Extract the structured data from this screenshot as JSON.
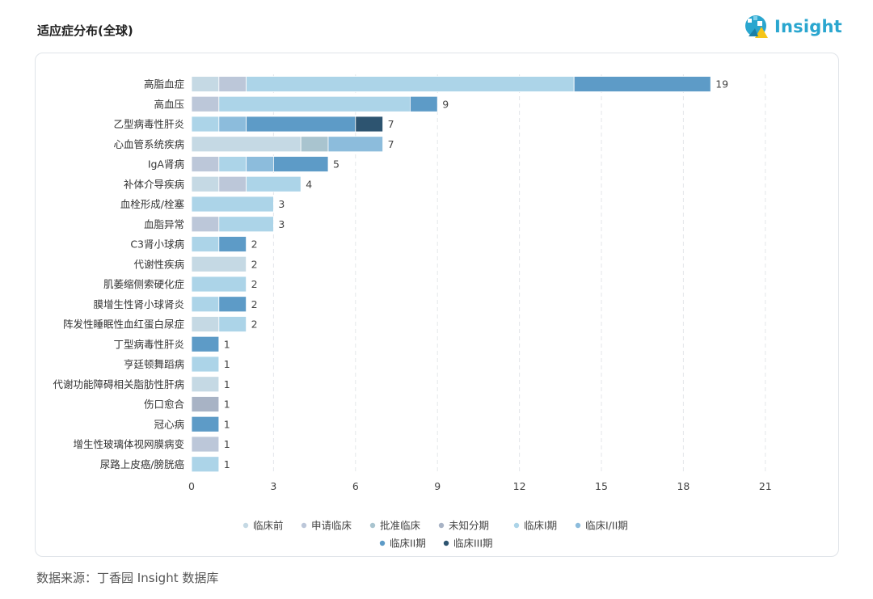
{
  "header": {
    "title": "适应症分布(全球)",
    "logo_text": "Insight"
  },
  "footer": {
    "source": "数据来源：丁香园 Insight 数据库"
  },
  "chart_data": {
    "type": "bar",
    "orientation": "horizontal",
    "stacked": true,
    "xlim": [
      0,
      21
    ],
    "xticks": [
      0,
      3,
      6,
      9,
      12,
      15,
      18,
      21
    ],
    "grid": "vertical dashed",
    "legend_position": "bottom",
    "categories": [
      "高脂血症",
      "高血压",
      "乙型病毒性肝炎",
      "心血管系统疾病",
      "IgA肾病",
      "补体介导疾病",
      "血栓形成/栓塞",
      "血脂异常",
      "C3肾小球病",
      "代谢性疾病",
      "肌萎缩侧索硬化症",
      "膜增生性肾小球肾炎",
      "阵发性睡眠性血红蛋白尿症",
      "丁型病毒性肝炎",
      "亨廷顿舞蹈病",
      "代谢功能障碍相关脂肪性肝病",
      "伤口愈合",
      "冠心病",
      "增生性玻璃体视网膜病变",
      "尿路上皮癌/膀胱癌"
    ],
    "totals": [
      19,
      9,
      7,
      7,
      5,
      4,
      3,
      3,
      2,
      2,
      2,
      2,
      2,
      1,
      1,
      1,
      1,
      1,
      1,
      1
    ],
    "series": [
      {
        "name": "临床前",
        "color": "#c5d9e4",
        "values": [
          1,
          0,
          0,
          4,
          0,
          1,
          0,
          0,
          0,
          2,
          0,
          0,
          1,
          0,
          0,
          1,
          0,
          0,
          0,
          0
        ]
      },
      {
        "name": "申请临床",
        "color": "#bcc7d9",
        "values": [
          1,
          1,
          0,
          0,
          1,
          1,
          0,
          1,
          0,
          0,
          0,
          0,
          0,
          0,
          0,
          0,
          0,
          0,
          1,
          0
        ]
      },
      {
        "name": "批准临床",
        "color": "#a9c4cf",
        "values": [
          0,
          0,
          0,
          1,
          0,
          0,
          0,
          0,
          0,
          0,
          0,
          0,
          0,
          0,
          0,
          0,
          0,
          0,
          0,
          0
        ]
      },
      {
        "name": "未知分期",
        "color": "#a8b3c5",
        "values": [
          0,
          0,
          0,
          0,
          0,
          0,
          0,
          0,
          0,
          0,
          0,
          0,
          0,
          0,
          0,
          0,
          1,
          0,
          0,
          0
        ]
      },
      {
        "name": "临床I期",
        "color": "#acd4e8",
        "values": [
          12,
          7,
          1,
          0,
          1,
          2,
          3,
          2,
          1,
          0,
          2,
          1,
          1,
          0,
          1,
          0,
          0,
          0,
          0,
          1
        ]
      },
      {
        "name": "临床I/II期",
        "color": "#8cbcdc",
        "values": [
          0,
          0,
          1,
          2,
          1,
          0,
          0,
          0,
          0,
          0,
          0,
          0,
          0,
          0,
          0,
          0,
          0,
          0,
          0,
          0
        ]
      },
      {
        "name": "临床II期",
        "color": "#5d9bc7",
        "values": [
          5,
          1,
          4,
          0,
          2,
          0,
          0,
          0,
          1,
          0,
          0,
          1,
          0,
          1,
          0,
          0,
          0,
          1,
          0,
          0
        ]
      },
      {
        "name": "临床III期",
        "color": "#2d5470",
        "values": [
          0,
          0,
          1,
          0,
          0,
          0,
          0,
          0,
          0,
          0,
          0,
          0,
          0,
          0,
          0,
          0,
          0,
          0,
          0,
          0
        ]
      }
    ]
  }
}
